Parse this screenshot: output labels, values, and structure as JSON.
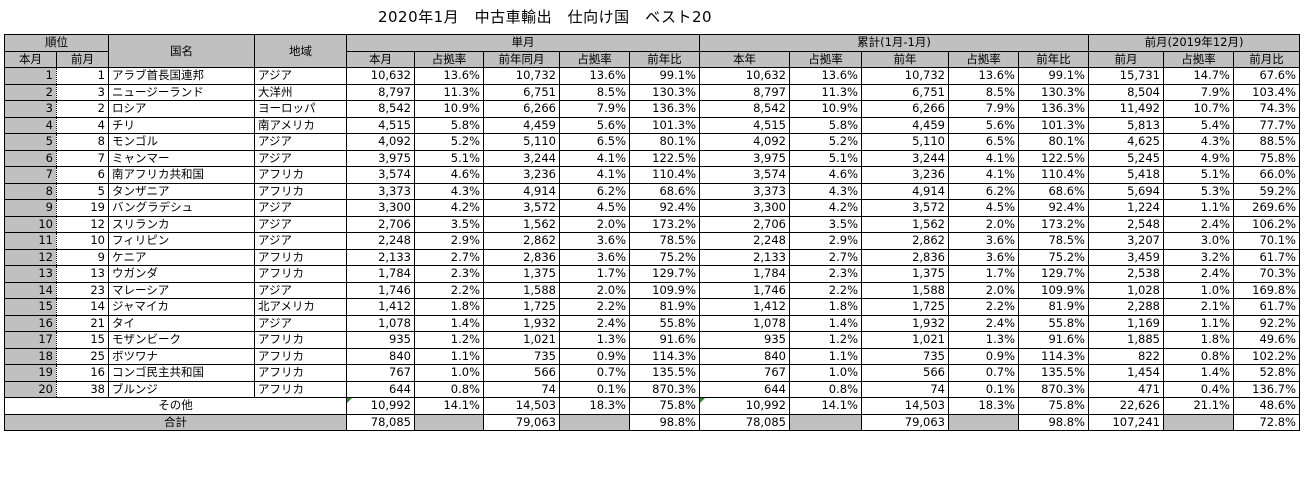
{
  "title": "2020年1月　中古車輸出　仕向け国　ベスト20",
  "headers": {
    "rank": "順位",
    "country": "国名",
    "region": "地域",
    "single_month": "単月",
    "cumulative": "累計(1月-1月)",
    "prev_month": "前月(2019年12月)",
    "this_month_rank": "本月",
    "prev_month_rank": "前月",
    "sub": {
      "honbetsu": "本月",
      "share1": "占拠率",
      "prev_year_same_month": "前年同月",
      "share2": "占拠率",
      "yoy1": "前年比",
      "this_year": "本年",
      "share3": "占拠率",
      "prev_year": "前年",
      "share4": "占拠率",
      "yoy2": "前年比",
      "prev_month_val": "前月",
      "share5": "占拠率",
      "mom": "前月比"
    }
  },
  "rows": [
    [
      "1",
      "1",
      "アラブ首長国連邦",
      "アジア",
      "10,632",
      "13.6%",
      "10,732",
      "13.6%",
      "99.1%",
      "10,632",
      "13.6%",
      "10,732",
      "13.6%",
      "99.1%",
      "15,731",
      "14.7%",
      "67.6%"
    ],
    [
      "2",
      "3",
      "ニュージーランド",
      "大洋州",
      "8,797",
      "11.3%",
      "6,751",
      "8.5%",
      "130.3%",
      "8,797",
      "11.3%",
      "6,751",
      "8.5%",
      "130.3%",
      "8,504",
      "7.9%",
      "103.4%"
    ],
    [
      "3",
      "2",
      "ロシア",
      "ヨーロッパ",
      "8,542",
      "10.9%",
      "6,266",
      "7.9%",
      "136.3%",
      "8,542",
      "10.9%",
      "6,266",
      "7.9%",
      "136.3%",
      "11,492",
      "10.7%",
      "74.3%"
    ],
    [
      "4",
      "4",
      "チリ",
      "南アメリカ",
      "4,515",
      "5.8%",
      "4,459",
      "5.6%",
      "101.3%",
      "4,515",
      "5.8%",
      "4,459",
      "5.6%",
      "101.3%",
      "5,813",
      "5.4%",
      "77.7%"
    ],
    [
      "5",
      "8",
      "モンゴル",
      "アジア",
      "4,092",
      "5.2%",
      "5,110",
      "6.5%",
      "80.1%",
      "4,092",
      "5.2%",
      "5,110",
      "6.5%",
      "80.1%",
      "4,625",
      "4.3%",
      "88.5%"
    ],
    [
      "6",
      "7",
      "ミャンマー",
      "アジア",
      "3,975",
      "5.1%",
      "3,244",
      "4.1%",
      "122.5%",
      "3,975",
      "5.1%",
      "3,244",
      "4.1%",
      "122.5%",
      "5,245",
      "4.9%",
      "75.8%"
    ],
    [
      "7",
      "6",
      "南アフリカ共和国",
      "アフリカ",
      "3,574",
      "4.6%",
      "3,236",
      "4.1%",
      "110.4%",
      "3,574",
      "4.6%",
      "3,236",
      "4.1%",
      "110.4%",
      "5,418",
      "5.1%",
      "66.0%"
    ],
    [
      "8",
      "5",
      "タンザニア",
      "アフリカ",
      "3,373",
      "4.3%",
      "4,914",
      "6.2%",
      "68.6%",
      "3,373",
      "4.3%",
      "4,914",
      "6.2%",
      "68.6%",
      "5,694",
      "5.3%",
      "59.2%"
    ],
    [
      "9",
      "19",
      "バングラデシュ",
      "アジア",
      "3,300",
      "4.2%",
      "3,572",
      "4.5%",
      "92.4%",
      "3,300",
      "4.2%",
      "3,572",
      "4.5%",
      "92.4%",
      "1,224",
      "1.1%",
      "269.6%"
    ],
    [
      "10",
      "12",
      "スリランカ",
      "アジア",
      "2,706",
      "3.5%",
      "1,562",
      "2.0%",
      "173.2%",
      "2,706",
      "3.5%",
      "1,562",
      "2.0%",
      "173.2%",
      "2,548",
      "2.4%",
      "106.2%"
    ],
    [
      "11",
      "10",
      "フィリピン",
      "アジア",
      "2,248",
      "2.9%",
      "2,862",
      "3.6%",
      "78.5%",
      "2,248",
      "2.9%",
      "2,862",
      "3.6%",
      "78.5%",
      "3,207",
      "3.0%",
      "70.1%"
    ],
    [
      "12",
      "9",
      "ケニア",
      "アフリカ",
      "2,133",
      "2.7%",
      "2,836",
      "3.6%",
      "75.2%",
      "2,133",
      "2.7%",
      "2,836",
      "3.6%",
      "75.2%",
      "3,459",
      "3.2%",
      "61.7%"
    ],
    [
      "13",
      "13",
      "ウガンダ",
      "アフリカ",
      "1,784",
      "2.3%",
      "1,375",
      "1.7%",
      "129.7%",
      "1,784",
      "2.3%",
      "1,375",
      "1.7%",
      "129.7%",
      "2,538",
      "2.4%",
      "70.3%"
    ],
    [
      "14",
      "23",
      "マレーシア",
      "アジア",
      "1,746",
      "2.2%",
      "1,588",
      "2.0%",
      "109.9%",
      "1,746",
      "2.2%",
      "1,588",
      "2.0%",
      "109.9%",
      "1,028",
      "1.0%",
      "169.8%"
    ],
    [
      "15",
      "14",
      "ジャマイカ",
      "北アメリカ",
      "1,412",
      "1.8%",
      "1,725",
      "2.2%",
      "81.9%",
      "1,412",
      "1.8%",
      "1,725",
      "2.2%",
      "81.9%",
      "2,288",
      "2.1%",
      "61.7%"
    ],
    [
      "16",
      "21",
      "タイ",
      "アジア",
      "1,078",
      "1.4%",
      "1,932",
      "2.4%",
      "55.8%",
      "1,078",
      "1.4%",
      "1,932",
      "2.4%",
      "55.8%",
      "1,169",
      "1.1%",
      "92.2%"
    ],
    [
      "17",
      "15",
      "モザンビーク",
      "アフリカ",
      "935",
      "1.2%",
      "1,021",
      "1.3%",
      "91.6%",
      "935",
      "1.2%",
      "1,021",
      "1.3%",
      "91.6%",
      "1,885",
      "1.8%",
      "49.6%"
    ],
    [
      "18",
      "25",
      "ボツワナ",
      "アフリカ",
      "840",
      "1.1%",
      "735",
      "0.9%",
      "114.3%",
      "840",
      "1.1%",
      "735",
      "0.9%",
      "114.3%",
      "822",
      "0.8%",
      "102.2%"
    ],
    [
      "19",
      "16",
      "コンゴ民主共和国",
      "アフリカ",
      "767",
      "1.0%",
      "566",
      "0.7%",
      "135.5%",
      "767",
      "1.0%",
      "566",
      "0.7%",
      "135.5%",
      "1,454",
      "1.4%",
      "52.8%"
    ],
    [
      "20",
      "38",
      "ブルンジ",
      "アフリカ",
      "644",
      "0.8%",
      "74",
      "0.1%",
      "870.3%",
      "644",
      "0.8%",
      "74",
      "0.1%",
      "870.3%",
      "471",
      "0.4%",
      "136.7%"
    ]
  ],
  "others": {
    "label": "その他",
    "values": [
      "10,992",
      "14.1%",
      "14,503",
      "18.3%",
      "75.8%",
      "10,992",
      "14.1%",
      "14,503",
      "18.3%",
      "75.8%",
      "22,626",
      "21.1%",
      "48.6%"
    ]
  },
  "total": {
    "label": "合計",
    "values": [
      "78,085",
      "",
      "79,063",
      "",
      "98.8%",
      "78,085",
      "",
      "79,063",
      "",
      "98.8%",
      "107,241",
      "",
      "72.8%"
    ]
  },
  "colors": {
    "header_bg": "#c0c0c0",
    "note_marker": "#2a8a2a"
  }
}
